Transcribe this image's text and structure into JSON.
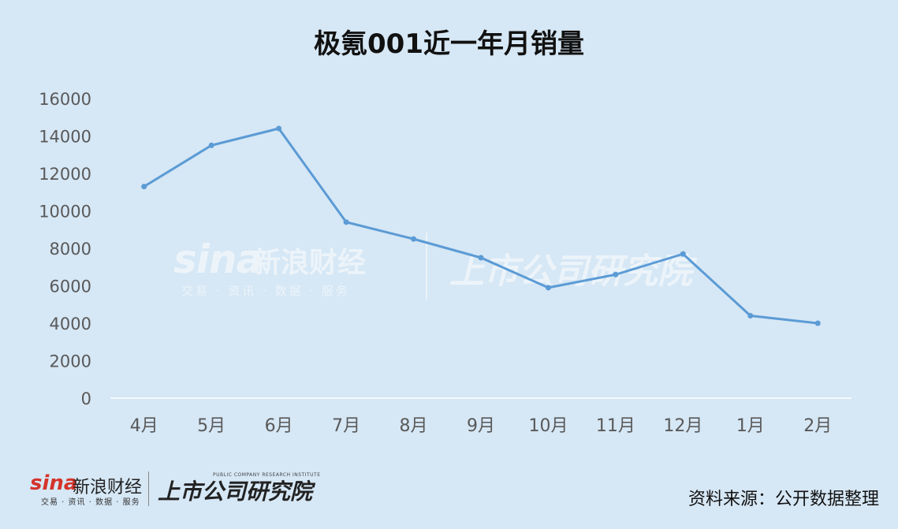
{
  "title": "极氪001近一年月销量",
  "source": "资料来源：公开数据整理",
  "watermark": {
    "sina": "sina",
    "sina_cn": "新浪财经",
    "sina_sub": "交易 · 资讯 · 数据 · 服务",
    "institute": "上市公司研究院",
    "institute_en": "PUBLIC COMPANY RESEARCH INSTITUTE"
  },
  "colors": {
    "background": "#d6e7f5",
    "line": "#5b9bd5",
    "grid": "#ffffff",
    "axis_text": "#595959"
  },
  "chart_data": {
    "type": "line",
    "title": "极氪001近一年月销量",
    "categories": [
      "4月",
      "5月",
      "6月",
      "7月",
      "8月",
      "9月",
      "10月",
      "11月",
      "12月",
      "1月",
      "2月"
    ],
    "series": [
      {
        "values": [
          11300,
          13500,
          14400,
          9400,
          8500,
          7500,
          5900,
          6600,
          7700,
          4400,
          4000
        ]
      }
    ],
    "ylim": [
      0,
      16000
    ],
    "yticks": [
      "0",
      "2000",
      "4000",
      "6000",
      "8000",
      "10000",
      "12000",
      "14000",
      "16000"
    ],
    "xlabel": "",
    "ylabel": "",
    "grid": false,
    "legend": "none"
  }
}
